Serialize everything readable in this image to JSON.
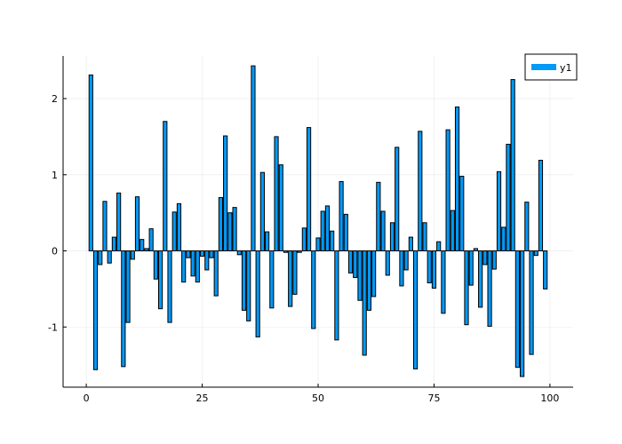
{
  "chart_data": {
    "type": "bar",
    "x": [
      1,
      2,
      3,
      4,
      5,
      6,
      7,
      8,
      9,
      10,
      11,
      12,
      13,
      14,
      15,
      16,
      17,
      18,
      19,
      20,
      21,
      22,
      23,
      24,
      25,
      26,
      27,
      28,
      29,
      30,
      31,
      32,
      33,
      34,
      35,
      36,
      37,
      38,
      39,
      40,
      41,
      42,
      43,
      44,
      45,
      46,
      47,
      48,
      49,
      50,
      51,
      52,
      53,
      54,
      55,
      56,
      57,
      58,
      59,
      60,
      61,
      62,
      63,
      64,
      65,
      66,
      67,
      68,
      69,
      70,
      71,
      72,
      73,
      74,
      75,
      76,
      77,
      78,
      79,
      80,
      81,
      82,
      83,
      84,
      85,
      86,
      87,
      88,
      89,
      90,
      91,
      92,
      93,
      94,
      95,
      96,
      97,
      98,
      99
    ],
    "series": [
      {
        "name": "y1",
        "color": "#009af9",
        "values": [
          2.31,
          -1.56,
          -0.18,
          0.65,
          -0.16,
          0.18,
          0.76,
          -1.52,
          -0.94,
          -0.11,
          0.71,
          0.15,
          0.03,
          0.29,
          -0.37,
          -0.76,
          1.7,
          -0.94,
          0.51,
          0.62,
          -0.41,
          -0.09,
          -0.33,
          -0.41,
          -0.07,
          -0.25,
          -0.09,
          -0.59,
          0.7,
          1.51,
          0.5,
          0.57,
          -0.05,
          -0.78,
          -0.92,
          2.43,
          -1.13,
          1.03,
          0.25,
          -0.75,
          1.5,
          1.13,
          -0.02,
          -0.73,
          -0.57,
          -0.02,
          0.3,
          1.62,
          -1.02,
          0.17,
          0.52,
          0.59,
          0.26,
          -1.17,
          0.91,
          0.48,
          -0.29,
          -0.35,
          -0.65,
          -1.37,
          -0.78,
          -0.6,
          0.9,
          0.52,
          -0.32,
          0.37,
          1.36,
          -0.46,
          -0.25,
          0.18,
          -1.55,
          1.57,
          0.37,
          -0.42,
          -0.49,
          0.12,
          -0.82,
          1.59,
          0.53,
          1.89,
          0.98,
          -0.97,
          -0.45,
          0.03,
          -0.74,
          -0.18,
          -0.99,
          -0.24,
          1.04,
          0.31,
          1.4,
          2.25,
          -1.53,
          -1.65,
          0.64,
          -1.36,
          -0.06,
          1.19,
          -0.5
        ]
      }
    ],
    "xlim": [
      -5,
      105
    ],
    "ylim": [
      -1.79,
      2.56
    ],
    "xticks": [
      0,
      25,
      50,
      75,
      100
    ],
    "xtick_labels": [
      "0",
      "25",
      "50",
      "75",
      "100"
    ],
    "yticks": [
      -1,
      0,
      1,
      2
    ],
    "ytick_labels": [
      "-1",
      "0",
      "1",
      "2"
    ],
    "grid": true,
    "legend": {
      "position": "top-right",
      "entries": [
        "y1"
      ]
    },
    "title": "",
    "xlabel": "",
    "ylabel": ""
  }
}
